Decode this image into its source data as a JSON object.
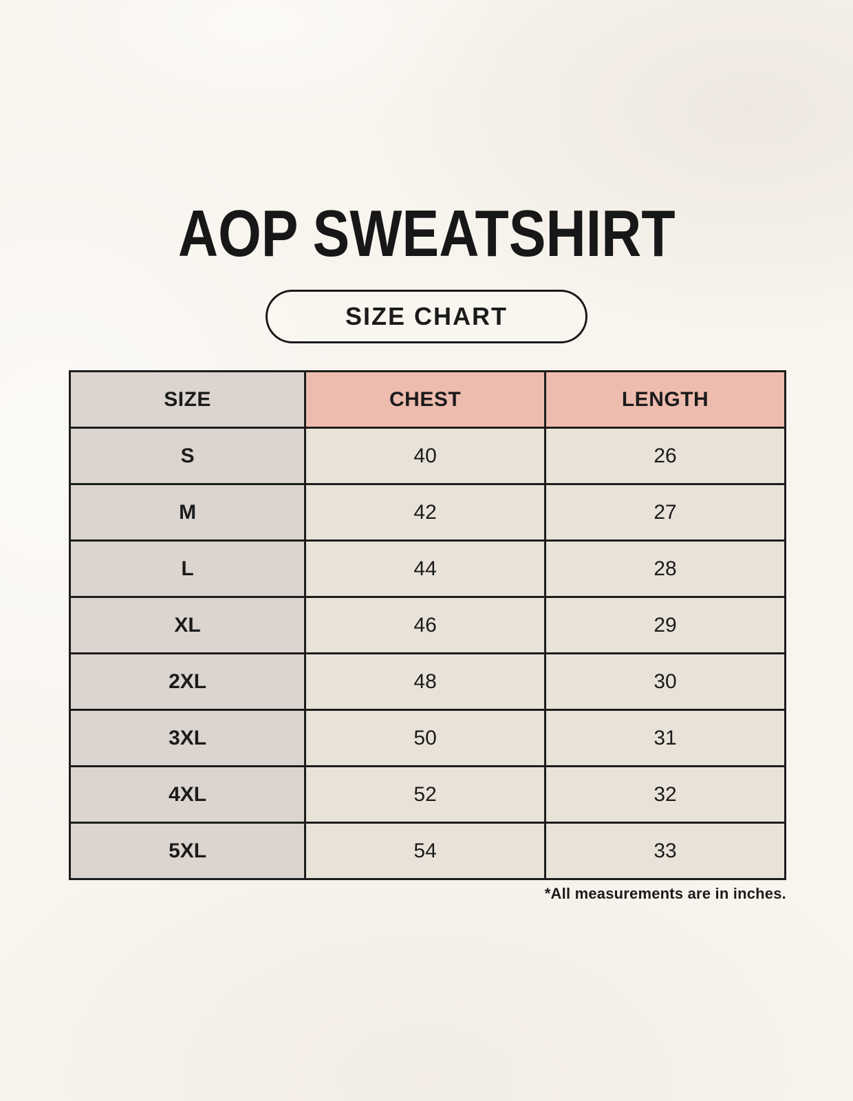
{
  "header": {
    "title": "AOP SWEATSHIRT",
    "badge": "SIZE CHART"
  },
  "table": {
    "columns": [
      "SIZE",
      "CHEST",
      "LENGTH"
    ],
    "rows": [
      [
        "S",
        "40",
        "26"
      ],
      [
        "M",
        "42",
        "27"
      ],
      [
        "L",
        "44",
        "28"
      ],
      [
        "XL",
        "46",
        "29"
      ],
      [
        "2XL",
        "48",
        "30"
      ],
      [
        "3XL",
        "50",
        "31"
      ],
      [
        "4XL",
        "52",
        "32"
      ],
      [
        "5XL",
        "54",
        "33"
      ]
    ]
  },
  "footer": {
    "note": "*All measurements are in inches."
  },
  "colors": {
    "background": "#f8f4ee",
    "header_accent": "#eebcae",
    "size_column": "#dcd4ce",
    "value_cell": "#e9e2d8",
    "border": "#1c1c1c",
    "text": "#1b1b1b"
  },
  "chart_data": {
    "type": "table",
    "title": "AOP SWEATSHIRT — SIZE CHART",
    "columns": [
      "SIZE",
      "CHEST",
      "LENGTH"
    ],
    "rows": [
      [
        "S",
        40,
        26
      ],
      [
        "M",
        42,
        27
      ],
      [
        "L",
        44,
        28
      ],
      [
        "XL",
        46,
        29
      ],
      [
        "2XL",
        48,
        30
      ],
      [
        "3XL",
        50,
        31
      ],
      [
        "4XL",
        52,
        32
      ],
      [
        "5XL",
        54,
        33
      ]
    ],
    "unit": "inches"
  }
}
